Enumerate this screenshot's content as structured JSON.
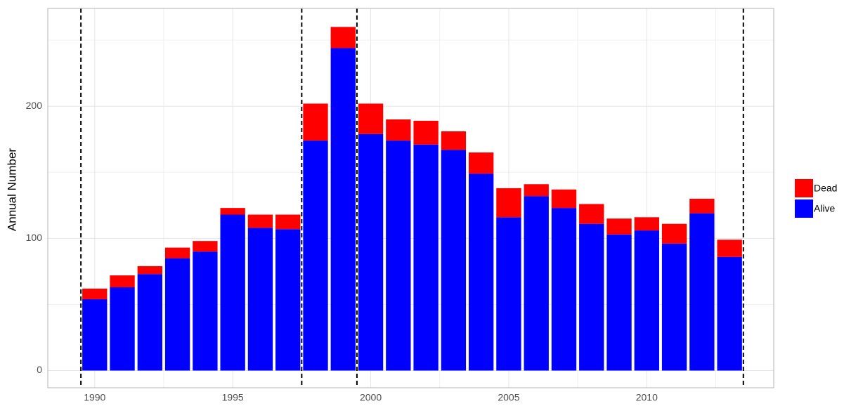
{
  "chart_data": {
    "type": "bar",
    "stacked": true,
    "ylabel": "Annual Number",
    "x": [
      1990,
      1991,
      1992,
      1993,
      1994,
      1995,
      1996,
      1997,
      1998,
      1999,
      2000,
      2001,
      2002,
      2003,
      2004,
      2005,
      2006,
      2007,
      2008,
      2009,
      2010,
      2011,
      2012,
      2013
    ],
    "series": [
      {
        "name": "Alive",
        "color": "#0000ff",
        "values": [
          54,
          63,
          73,
          85,
          90,
          118,
          108,
          107,
          174,
          244,
          179,
          174,
          171,
          167,
          149,
          116,
          132,
          123,
          111,
          103,
          106,
          96,
          119,
          86
        ]
      },
      {
        "name": "Dead",
        "color": "#ff0000",
        "values": [
          8,
          9,
          6,
          8,
          8,
          5,
          10,
          11,
          28,
          16,
          23,
          16,
          18,
          14,
          16,
          22,
          9,
          14,
          15,
          12,
          10,
          15,
          11,
          13
        ]
      }
    ],
    "vlines": [
      1989.5,
      1997.5,
      1999.5,
      2013.5
    ],
    "xlim": [
      1988.3,
      2014.6
    ],
    "xticks": [
      1990,
      1995,
      2000,
      2005,
      2010
    ],
    "ylim": [
      -13,
      274
    ],
    "yticks": [
      0,
      100,
      200
    ],
    "grid": true
  }
}
